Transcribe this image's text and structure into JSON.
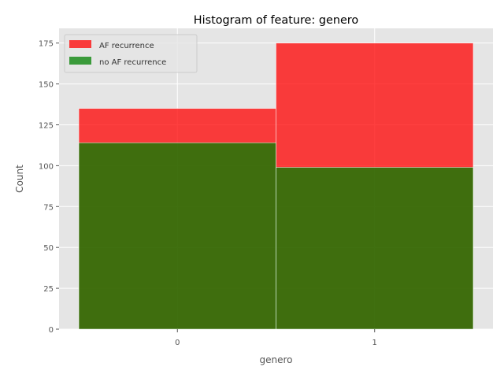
{
  "chart_data": {
    "type": "bar",
    "title": "Histogram of feature: genero",
    "xlabel": "genero",
    "ylabel": "Count",
    "categories": [
      "0",
      "1"
    ],
    "series": [
      {
        "name": "AF recurrence",
        "values": [
          135,
          175
        ],
        "color": "#ff0000",
        "alpha": 0.75
      },
      {
        "name": "no AF recurrence",
        "values": [
          114,
          99
        ],
        "color": "#008000",
        "alpha": 0.75
      }
    ],
    "ylim": [
      0,
      184
    ],
    "yticks": [
      0,
      25,
      50,
      75,
      100,
      125,
      150,
      175
    ],
    "xticks": [
      "0",
      "1"
    ],
    "grid": true,
    "legend_position": "top-left",
    "background": "#e5e5e5"
  }
}
